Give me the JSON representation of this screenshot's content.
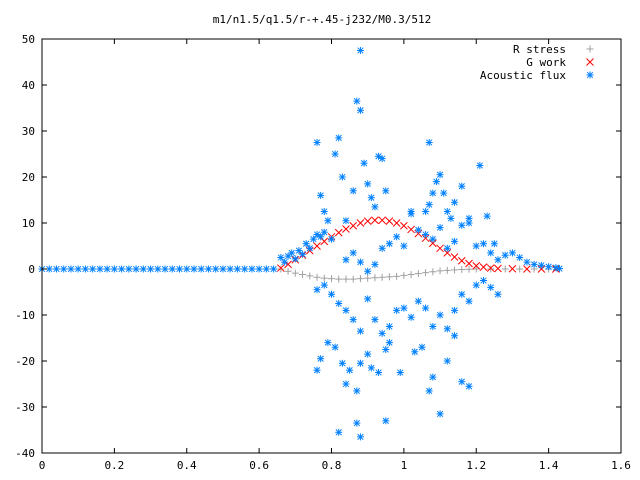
{
  "chart_data": {
    "type": "scatter",
    "title": "m1/n1.5/q1.5/r-+.45-j232/M0.3/512",
    "xlabel": "",
    "ylabel": "",
    "xlim": [
      0,
      1.6
    ],
    "ylim": [
      -40,
      50
    ],
    "xticks": [
      0,
      0.2,
      0.4,
      0.6,
      0.8,
      1,
      1.2,
      1.4,
      1.6
    ],
    "xtick_labels": [
      "0",
      "0.2",
      "0.4",
      "0.6",
      "0.8",
      "1",
      "1.2",
      "1.4",
      "1.6"
    ],
    "yticks": [
      -40,
      -30,
      -20,
      -10,
      0,
      10,
      20,
      30,
      40,
      50
    ],
    "ytick_labels": [
      "-40",
      "-30",
      "-20",
      "-10",
      "0",
      "10",
      "20",
      "30",
      "40",
      "50"
    ],
    "grid": false,
    "legend_position": "top-right",
    "series": [
      {
        "name": "R stress",
        "marker": "plus",
        "color": "#a0a0a0",
        "points": [
          [
            0.66,
            0.0
          ],
          [
            0.68,
            -0.5
          ],
          [
            0.7,
            -0.9
          ],
          [
            0.72,
            -1.2
          ],
          [
            0.74,
            -1.5
          ],
          [
            0.76,
            -1.8
          ],
          [
            0.78,
            -2.0
          ],
          [
            0.8,
            -2.1
          ],
          [
            0.82,
            -2.2
          ],
          [
            0.84,
            -2.2
          ],
          [
            0.86,
            -2.2
          ],
          [
            0.88,
            -2.1
          ],
          [
            0.9,
            -2.0
          ],
          [
            0.92,
            -1.9
          ],
          [
            0.94,
            -1.8
          ],
          [
            0.96,
            -1.7
          ],
          [
            0.98,
            -1.6
          ],
          [
            1.0,
            -1.4
          ],
          [
            1.02,
            -1.2
          ],
          [
            1.04,
            -1.0
          ],
          [
            1.06,
            -0.8
          ],
          [
            1.08,
            -0.6
          ],
          [
            1.1,
            -0.4
          ],
          [
            1.12,
            -0.3
          ],
          [
            1.14,
            -0.2
          ],
          [
            1.16,
            -0.1
          ],
          [
            1.18,
            -0.05
          ],
          [
            1.2,
            0.0
          ],
          [
            1.24,
            0.0
          ],
          [
            1.28,
            0.0
          ],
          [
            1.32,
            0.0
          ],
          [
            1.36,
            0.0
          ],
          [
            1.4,
            0.0
          ]
        ]
      },
      {
        "name": "G work",
        "marker": "cross",
        "color": "#ff0000",
        "points": [
          [
            0.66,
            0.2
          ],
          [
            0.68,
            1.0
          ],
          [
            0.7,
            2.0
          ],
          [
            0.72,
            3.0
          ],
          [
            0.74,
            4.0
          ],
          [
            0.76,
            5.0
          ],
          [
            0.78,
            6.0
          ],
          [
            0.8,
            7.0
          ],
          [
            0.82,
            7.9
          ],
          [
            0.84,
            8.7
          ],
          [
            0.86,
            9.4
          ],
          [
            0.88,
            10.0
          ],
          [
            0.9,
            10.4
          ],
          [
            0.92,
            10.6
          ],
          [
            0.94,
            10.6
          ],
          [
            0.96,
            10.4
          ],
          [
            0.98,
            10.0
          ],
          [
            1.0,
            9.4
          ],
          [
            1.02,
            8.6
          ],
          [
            1.04,
            7.7
          ],
          [
            1.06,
            6.7
          ],
          [
            1.08,
            5.6
          ],
          [
            1.1,
            4.5
          ],
          [
            1.12,
            3.5
          ],
          [
            1.14,
            2.6
          ],
          [
            1.16,
            1.8
          ],
          [
            1.18,
            1.2
          ],
          [
            1.2,
            0.7
          ],
          [
            1.22,
            0.4
          ],
          [
            1.24,
            0.2
          ],
          [
            1.26,
            0.1
          ],
          [
            1.3,
            0.05
          ],
          [
            1.34,
            0.0
          ],
          [
            1.38,
            0.0
          ],
          [
            1.42,
            0.0
          ]
        ]
      },
      {
        "name": "Acoustic flux",
        "marker": "star",
        "color": "#0080ff",
        "points": [
          [
            0.0,
            0.0
          ],
          [
            0.02,
            0.0
          ],
          [
            0.04,
            0.0
          ],
          [
            0.06,
            0.0
          ],
          [
            0.08,
            0.0
          ],
          [
            0.1,
            0.0
          ],
          [
            0.12,
            0.0
          ],
          [
            0.14,
            0.0
          ],
          [
            0.16,
            0.0
          ],
          [
            0.18,
            0.0
          ],
          [
            0.2,
            0.0
          ],
          [
            0.22,
            0.0
          ],
          [
            0.24,
            0.0
          ],
          [
            0.26,
            0.0
          ],
          [
            0.28,
            0.0
          ],
          [
            0.3,
            0.0
          ],
          [
            0.32,
            0.0
          ],
          [
            0.34,
            0.0
          ],
          [
            0.36,
            0.0
          ],
          [
            0.38,
            0.0
          ],
          [
            0.4,
            0.0
          ],
          [
            0.42,
            0.0
          ],
          [
            0.44,
            0.0
          ],
          [
            0.46,
            0.0
          ],
          [
            0.48,
            0.0
          ],
          [
            0.5,
            0.0
          ],
          [
            0.52,
            0.0
          ],
          [
            0.54,
            0.0
          ],
          [
            0.56,
            0.0
          ],
          [
            0.58,
            0.0
          ],
          [
            0.6,
            0.0
          ],
          [
            0.62,
            0.0
          ],
          [
            0.64,
            0.0
          ],
          [
            0.66,
            2.5
          ],
          [
            0.67,
            1.5
          ],
          [
            0.68,
            2.8
          ],
          [
            0.69,
            3.5
          ],
          [
            0.7,
            2.2
          ],
          [
            0.71,
            4.0
          ],
          [
            0.72,
            3.2
          ],
          [
            0.73,
            5.5
          ],
          [
            0.74,
            4.5
          ],
          [
            0.75,
            6.5
          ],
          [
            0.76,
            7.5
          ],
          [
            0.77,
            7.0
          ],
          [
            0.76,
            27.5
          ],
          [
            0.77,
            16.0
          ],
          [
            0.78,
            12.5
          ],
          [
            0.79,
            10.5
          ],
          [
            0.81,
            25.0
          ],
          [
            0.82,
            28.5
          ],
          [
            0.83,
            20.0
          ],
          [
            0.84,
            10.5
          ],
          [
            0.86,
            17.0
          ],
          [
            0.87,
            36.5
          ],
          [
            0.88,
            34.5
          ],
          [
            0.88,
            47.5
          ],
          [
            0.89,
            23.0
          ],
          [
            0.9,
            18.5
          ],
          [
            0.91,
            15.5
          ],
          [
            0.92,
            13.5
          ],
          [
            0.93,
            24.5
          ],
          [
            0.94,
            24.0
          ],
          [
            0.95,
            17.0
          ],
          [
            0.78,
            8.0
          ],
          [
            0.8,
            6.5
          ],
          [
            0.84,
            2.0
          ],
          [
            0.86,
            3.5
          ],
          [
            0.88,
            1.5
          ],
          [
            0.9,
            -0.5
          ],
          [
            0.92,
            1.0
          ],
          [
            0.94,
            4.5
          ],
          [
            0.96,
            5.5
          ],
          [
            0.98,
            7.0
          ],
          [
            1.0,
            5.0
          ],
          [
            1.02,
            12.0
          ],
          [
            1.04,
            8.5
          ],
          [
            1.06,
            7.5
          ],
          [
            1.08,
            6.5
          ],
          [
            1.1,
            9.0
          ],
          [
            1.12,
            4.5
          ],
          [
            1.14,
            6.0
          ],
          [
            1.16,
            9.5
          ],
          [
            1.18,
            11.0
          ],
          [
            1.2,
            5.0
          ],
          [
            1.22,
            5.5
          ],
          [
            1.24,
            3.5
          ],
          [
            1.26,
            2.0
          ],
          [
            1.28,
            3.0
          ],
          [
            1.3,
            3.5
          ],
          [
            1.32,
            2.5
          ],
          [
            1.34,
            1.5
          ],
          [
            1.36,
            1.0
          ],
          [
            1.38,
            0.8
          ],
          [
            1.4,
            0.5
          ],
          [
            1.42,
            0.3
          ],
          [
            1.43,
            0.1
          ],
          [
            1.06,
            12.5
          ],
          [
            1.07,
            14.0
          ],
          [
            1.08,
            16.5
          ],
          [
            1.09,
            19.0
          ],
          [
            1.1,
            20.5
          ],
          [
            1.11,
            16.5
          ],
          [
            1.12,
            12.5
          ],
          [
            1.13,
            11.0
          ],
          [
            1.14,
            14.5
          ],
          [
            1.16,
            18.0
          ],
          [
            1.18,
            10.0
          ],
          [
            1.21,
            22.5
          ],
          [
            1.23,
            11.5
          ],
          [
            1.25,
            5.5
          ],
          [
            1.07,
            27.5
          ],
          [
            1.02,
            12.5
          ],
          [
            0.76,
            -4.5
          ],
          [
            0.78,
            -3.5
          ],
          [
            0.8,
            -5.5
          ],
          [
            0.82,
            -7.5
          ],
          [
            0.84,
            -9.0
          ],
          [
            0.86,
            -11.0
          ],
          [
            0.88,
            -13.5
          ],
          [
            0.9,
            -6.5
          ],
          [
            0.92,
            -11.0
          ],
          [
            0.94,
            -14.0
          ],
          [
            0.96,
            -12.5
          ],
          [
            0.98,
            -9.0
          ],
          [
            1.0,
            -8.5
          ],
          [
            1.02,
            -10.5
          ],
          [
            1.04,
            -7.0
          ],
          [
            1.06,
            -8.5
          ],
          [
            1.08,
            -12.5
          ],
          [
            1.1,
            -10.0
          ],
          [
            1.12,
            -13.0
          ],
          [
            1.14,
            -9.0
          ],
          [
            1.16,
            -5.5
          ],
          [
            1.18,
            -7.0
          ],
          [
            1.2,
            -3.5
          ],
          [
            1.22,
            -2.5
          ],
          [
            1.24,
            -4.0
          ],
          [
            1.26,
            -5.5
          ],
          [
            0.76,
            -22.0
          ],
          [
            0.77,
            -19.5
          ],
          [
            0.79,
            -16.0
          ],
          [
            0.81,
            -17.0
          ],
          [
            0.83,
            -20.5
          ],
          [
            0.84,
            -25.0
          ],
          [
            0.85,
            -22.0
          ],
          [
            0.87,
            -26.5
          ],
          [
            0.88,
            -20.5
          ],
          [
            0.9,
            -18.5
          ],
          [
            0.91,
            -21.5
          ],
          [
            0.93,
            -22.5
          ],
          [
            0.95,
            -17.5
          ],
          [
            0.96,
            -16.0
          ],
          [
            0.99,
            -22.5
          ],
          [
            1.03,
            -18.0
          ],
          [
            1.05,
            -17.0
          ],
          [
            1.08,
            -23.5
          ],
          [
            1.12,
            -20.0
          ],
          [
            1.14,
            -14.5
          ],
          [
            1.16,
            -24.5
          ],
          [
            1.18,
            -25.5
          ],
          [
            0.82,
            -35.5
          ],
          [
            0.87,
            -33.5
          ],
          [
            0.88,
            -36.5
          ],
          [
            0.95,
            -33.0
          ],
          [
            1.07,
            -26.5
          ],
          [
            1.1,
            -31.5
          ]
        ]
      }
    ]
  }
}
